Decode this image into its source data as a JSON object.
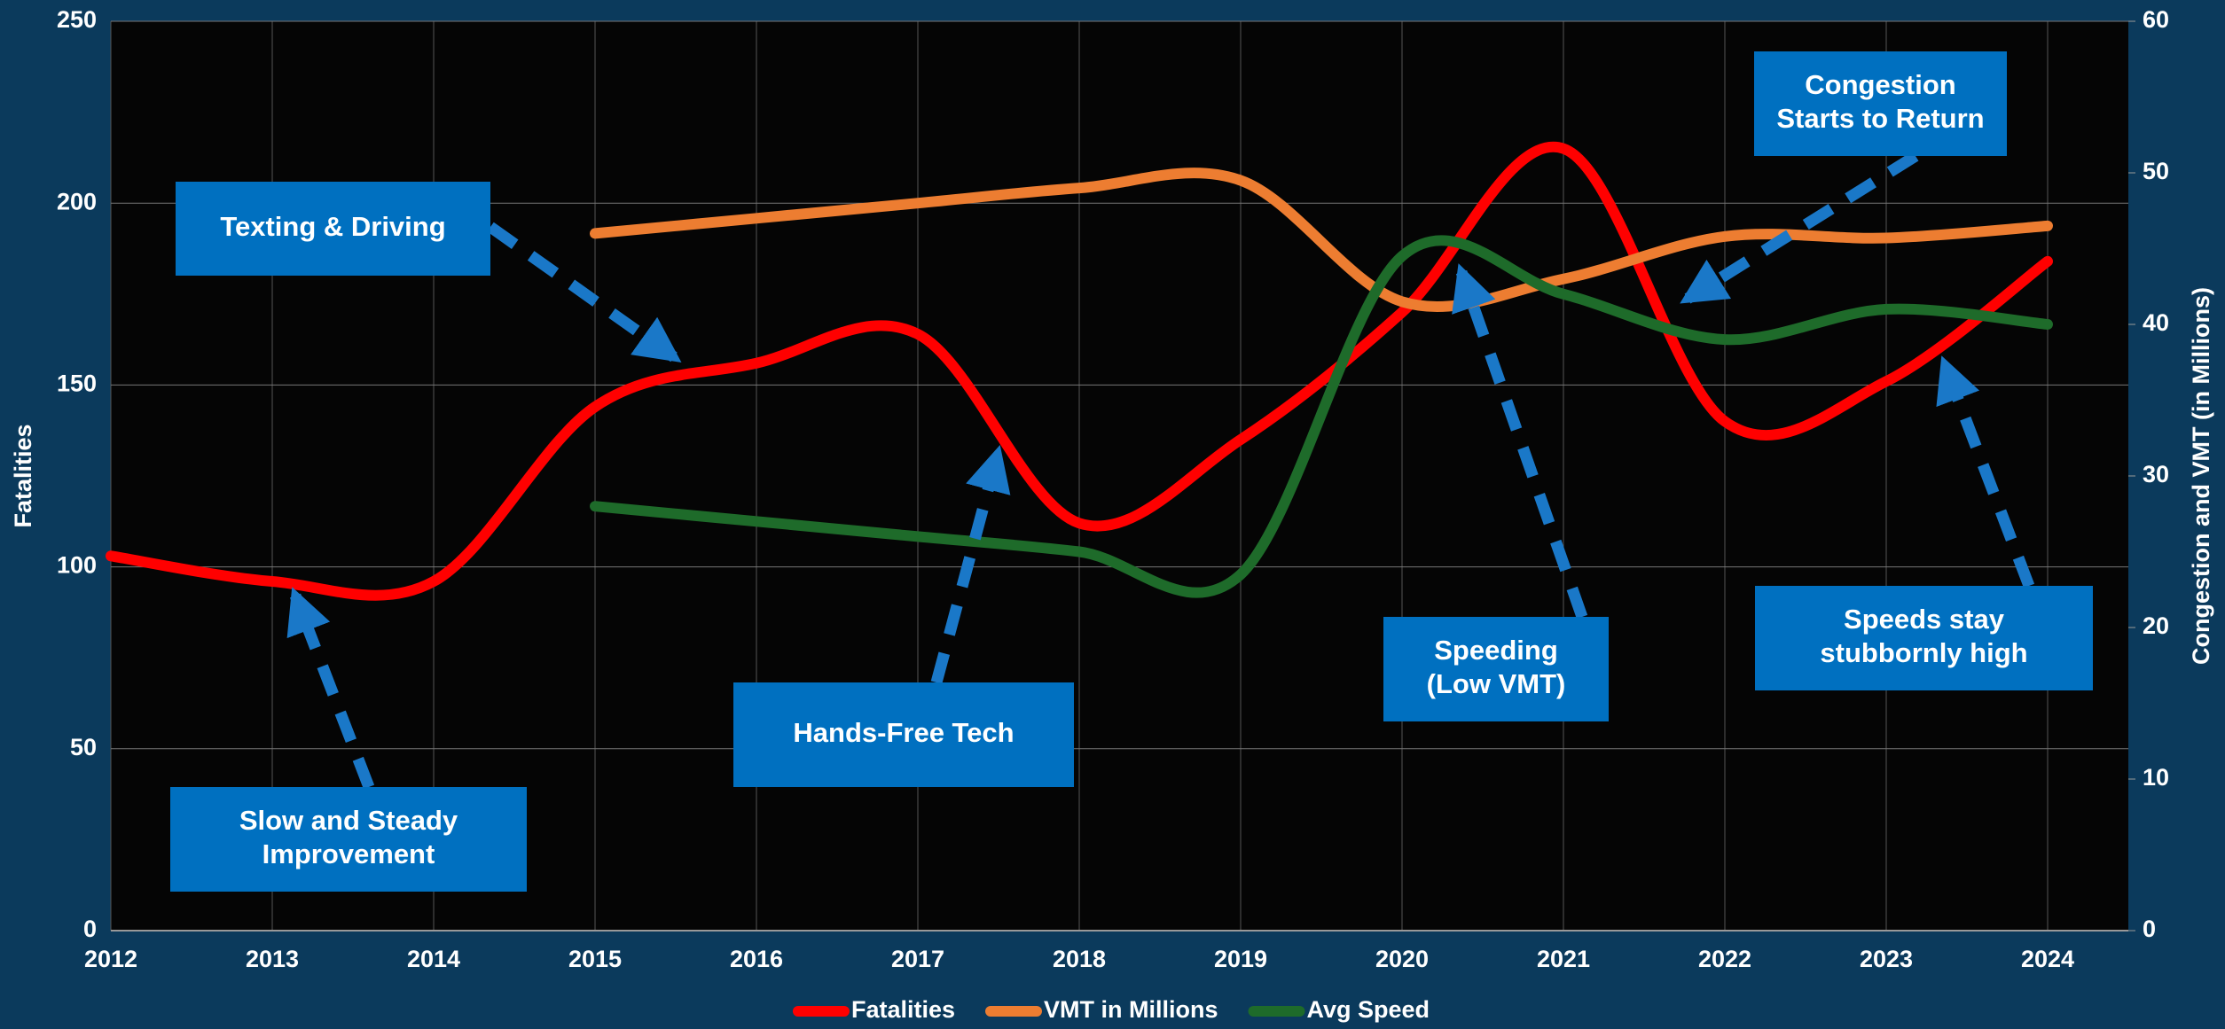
{
  "chart_data": {
    "type": "line",
    "x": [
      2012,
      2013,
      2014,
      2015,
      2016,
      2017,
      2018,
      2019,
      2020,
      2021,
      2022,
      2023,
      2024
    ],
    "xlim": [
      2012,
      2024.5
    ],
    "xticks": [
      2012,
      2013,
      2014,
      2015,
      2016,
      2017,
      2018,
      2019,
      2020,
      2021,
      2022,
      2023,
      2024
    ],
    "ylabel": "Fatalities",
    "ylim": [
      0,
      250
    ],
    "yticks": [
      0,
      50,
      100,
      150,
      200,
      250
    ],
    "y2label": "Congestion and VMT (in Millions)",
    "y2lim": [
      0,
      60
    ],
    "y2ticks": [
      0,
      10,
      20,
      30,
      40,
      50,
      60
    ],
    "grid": true,
    "legend": "bottom",
    "series": [
      {
        "name": "Fatalities",
        "color": "#ff0000",
        "values": [
          103,
          96,
          96,
          144,
          156,
          164,
          112,
          135,
          170,
          215,
          140,
          151,
          184
        ]
      },
      {
        "name": "VMT in Millions",
        "color": "#ed7d31",
        "axis": "y2",
        "values": [
          null,
          null,
          null,
          46,
          47,
          48,
          49,
          49.5,
          41.5,
          43,
          45.8,
          45.7,
          46.5
        ]
      },
      {
        "name": "Avg Speed",
        "color": "#1e6b2a",
        "axis": "y2",
        "values": [
          null,
          null,
          null,
          28,
          27,
          26,
          25,
          23.5,
          44.5,
          42,
          39,
          41,
          40
        ]
      }
    ],
    "annotations": [
      [
        "Texting & Driving"
      ],
      [
        "Slow and Steady",
        "Improvement"
      ],
      [
        "Hands-Free Tech"
      ],
      [
        "Speeding",
        "(Low VMT)"
      ],
      [
        "Congestion",
        "Starts to Return"
      ],
      [
        "Speeds stay",
        "stubbornly high"
      ]
    ]
  }
}
